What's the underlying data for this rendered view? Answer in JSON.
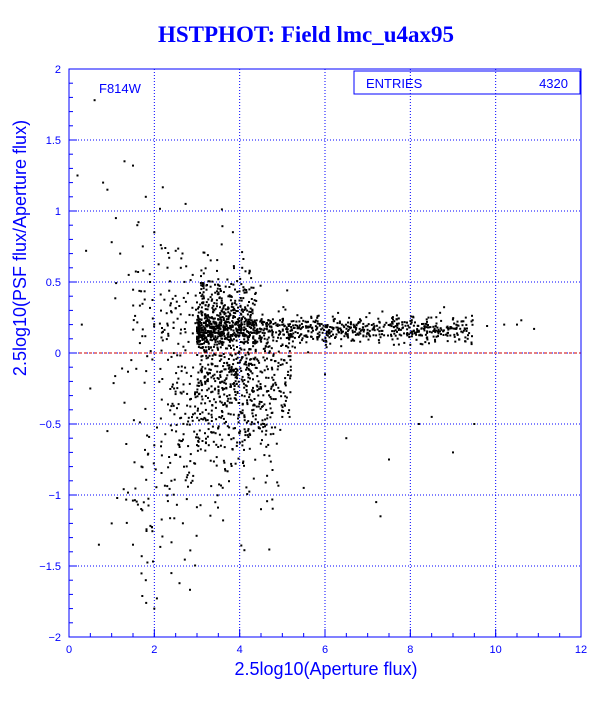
{
  "chart_data": {
    "type": "scatter",
    "title": "HSTPHOT: Field lmc_u4ax95",
    "xlabel": "2.5log10(Aperture flux)",
    "ylabel": "2.5log10(PSF flux/Aperture flux)",
    "xlim": [
      0,
      12
    ],
    "ylim": [
      -2,
      2
    ],
    "xticks": [
      "0",
      "2",
      "4",
      "6",
      "8",
      "10",
      "12"
    ],
    "yticks": [
      "-2",
      "-1.5",
      "-1",
      "-0.5",
      "0",
      "0.5",
      "1",
      "1.5",
      "2"
    ],
    "grid": true,
    "annotation": "F814W",
    "stats_box": {
      "label": "ENTRIES",
      "value": "4320"
    },
    "reference_line": {
      "y": 0,
      "color": "#cc0000",
      "style": "dashed"
    },
    "marker_color": "#000000",
    "axis_color": "#0000ff",
    "series": [
      {
        "points": [
          [
            0.2,
            1.25
          ],
          [
            0.6,
            1.78
          ],
          [
            0.8,
            1.2
          ],
          [
            1.3,
            1.35
          ],
          [
            1.5,
            1.32
          ],
          [
            1.8,
            1.1
          ],
          [
            0.9,
            1.15
          ],
          [
            1.1,
            0.95
          ],
          [
            1.6,
            0.9
          ],
          [
            1.9,
            0.5
          ],
          [
            1.2,
            0.7
          ],
          [
            0.4,
            0.72
          ],
          [
            1.0,
            0.78
          ],
          [
            1.4,
            0.55
          ],
          [
            2.0,
            0.85
          ],
          [
            2.5,
            0.72
          ],
          [
            2.9,
            0.55
          ],
          [
            3.1,
            0.45
          ],
          [
            3.5,
            0.52
          ],
          [
            3.8,
            0.4
          ],
          [
            0.5,
            -0.25
          ],
          [
            0.9,
            -0.55
          ],
          [
            1.3,
            -0.35
          ],
          [
            1.7,
            -0.8
          ],
          [
            2.0,
            -0.65
          ],
          [
            2.4,
            -0.9
          ],
          [
            1.0,
            -1.2
          ],
          [
            1.5,
            -1.35
          ],
          [
            1.8,
            -1.6
          ],
          [
            2.0,
            -1.8
          ],
          [
            2.4,
            -1.55
          ],
          [
            0.7,
            -1.35
          ],
          [
            5.0,
            -0.45
          ],
          [
            6.5,
            -0.6
          ],
          [
            7.5,
            -0.75
          ],
          [
            8.2,
            -0.5
          ],
          [
            9.0,
            -0.7
          ],
          [
            9.5,
            -0.5
          ],
          [
            4.5,
            -1.1
          ],
          [
            5.5,
            -0.95
          ],
          [
            7.2,
            -1.05
          ],
          [
            7.3,
            -1.15
          ],
          [
            8.5,
            -0.45
          ],
          [
            6.0,
            -0.15
          ],
          [
            10.5,
            0.2
          ],
          [
            10.9,
            0.17
          ],
          [
            10.2,
            0.2
          ],
          [
            9.8,
            0.19
          ],
          [
            10.6,
            0.23
          ],
          [
            0.3,
            0.2
          ]
        ]
      }
    ]
  }
}
